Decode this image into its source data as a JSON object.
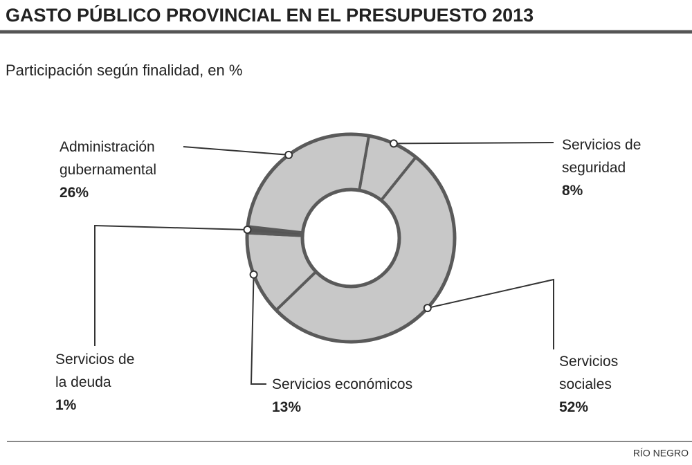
{
  "chart_data": {
    "type": "donut",
    "title": "GASTO PÚBLICO PROVINCIAL EN EL PRESUPUESTO 2013",
    "subtitle": "Participación según finalidad, en %",
    "categories": [
      "Servicios de seguridad",
      "Servicios sociales",
      "Servicios económicos",
      "Servicios de la deuda",
      "Administración gubernamental"
    ],
    "values": [
      8,
      52,
      13,
      1,
      26
    ],
    "value_labels": [
      "8%",
      "52%",
      "13%",
      "1%",
      "26%"
    ],
    "colors": [
      "#c8c8c8",
      "#c8c8c8",
      "#c8c8c8",
      "#555555",
      "#c8c8c8"
    ],
    "source": "RÍO NEGRO"
  }
}
